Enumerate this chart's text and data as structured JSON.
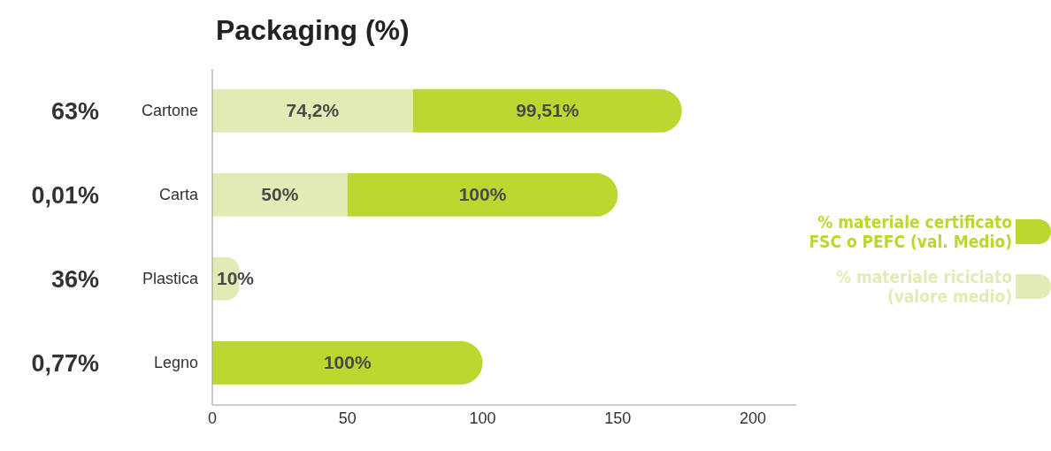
{
  "chart_data": {
    "type": "bar",
    "orientation": "horizontal",
    "stacked": true,
    "title": "Packaging (%)",
    "categories": [
      "Cartone",
      "Carta",
      "Plastica",
      "Legno"
    ],
    "series": [
      {
        "name": "% materiale riciclato (valore medio)",
        "color": "#e2ebb5",
        "values": [
          74.2,
          50,
          10,
          null
        ],
        "value_labels": [
          "74,2%",
          "50%",
          "10%",
          null
        ]
      },
      {
        "name": "% materiale certificato FSC o PEFC (val. Medio)",
        "color": "#bed630",
        "values": [
          99.51,
          100,
          null,
          100
        ],
        "value_labels": [
          "99,51%",
          "100%",
          null,
          "100%"
        ]
      }
    ],
    "xlim": [
      0,
      216
    ],
    "xticks": [
      0,
      50,
      100,
      150,
      200
    ],
    "legend": "right",
    "annotations": [
      "63%",
      "0,01%",
      "36%",
      "0,77%"
    ]
  }
}
